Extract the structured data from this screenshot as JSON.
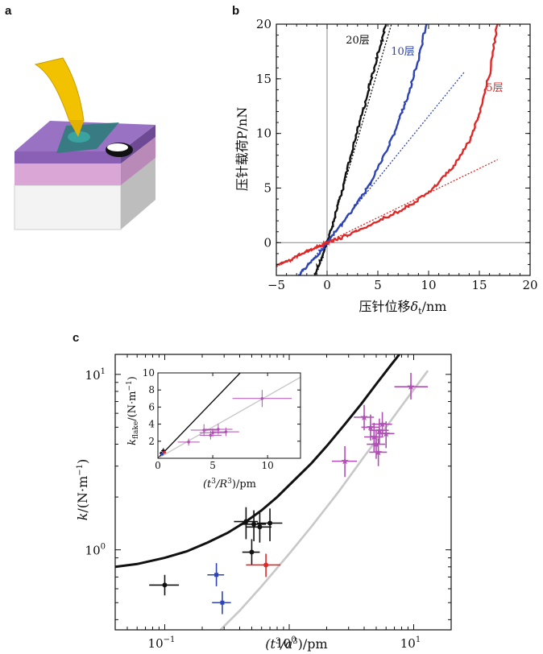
{
  "panels": {
    "a_label": "a",
    "b_label": "b",
    "c_label": "c"
  },
  "colors": {
    "gold": "#f2c200",
    "purple": "#8a60b5",
    "pink": "#d9a6d6",
    "teal": "#2e7c7c",
    "black_series": "#111111",
    "blue_series": "#2e44b5",
    "red_series": "#e02828",
    "magenta_points": "#b04fb4",
    "gray_line": "#c8c8c8"
  },
  "chart_data": [
    {
      "type": "line",
      "panel": "b",
      "ylabel": "压针载荷P/nN",
      "xlabel_main": "压针位移",
      "xlabel_symbol": "δ",
      "xlabel_subscript": "t",
      "xlabel_unit": "/nm",
      "xlim": [
        -5,
        20
      ],
      "ylim": [
        -3,
        20
      ],
      "xticks": [
        -5,
        0,
        5,
        10,
        15,
        20
      ],
      "yticks": [
        0,
        5,
        10,
        15,
        20
      ],
      "xtick_labels": [
        "−5",
        "0",
        "5",
        "10",
        "15",
        "20"
      ],
      "ytick_labels": [
        "0",
        "5",
        "10",
        "15",
        "20"
      ],
      "reference_lines": {
        "x": 0,
        "y": 0
      },
      "series": [
        {
          "name": "20层",
          "color": "#111111",
          "x": [
            -1.2,
            -0.6,
            0,
            0.8,
            1.6,
            2.5,
            3.4,
            4.2,
            5.0,
            5.8
          ],
          "y": [
            -3,
            -1.5,
            0,
            2.5,
            5.2,
            8.4,
            11.6,
            14.4,
            17.2,
            20
          ],
          "fit_x": [
            0,
            6.5
          ],
          "fit_y": [
            0,
            20.5
          ]
        },
        {
          "name": "10层",
          "color": "#2e44b5",
          "x": [
            -2.8,
            -1.4,
            0,
            1.5,
            3.0,
            4.5,
            6.0,
            7.0,
            8.0,
            9.0,
            9.8
          ],
          "y": [
            -3,
            -1.6,
            0,
            1.8,
            3.7,
            5.8,
            8.7,
            11.0,
            13.6,
            16.8,
            20
          ],
          "fit_x": [
            -2.8,
            13.5
          ],
          "fit_y": [
            -3.1,
            15.6
          ]
        },
        {
          "name": "5层",
          "color": "#e02828",
          "x": [
            -5,
            -3.5,
            -2,
            -0.8,
            0,
            1.5,
            3.5,
            6,
            8.5,
            10.5,
            12.5,
            14,
            15,
            16,
            16.8
          ],
          "y": [
            -2.1,
            -1.5,
            -0.8,
            -0.3,
            0,
            0.5,
            1.3,
            2.4,
            3.6,
            5.0,
            7.0,
            9.3,
            11.8,
            15.5,
            20
          ],
          "fit_x": [
            -5,
            16.8
          ],
          "fit_y": [
            -2.2,
            7.6
          ]
        }
      ]
    },
    {
      "type": "scatter",
      "panel": "c",
      "scale": "log-log",
      "ylabel_var": "k",
      "ylabel_unit": "/(N·m",
      "ylabel_exp": "−1",
      "ylabel_close": ")",
      "xlabel_var": "(t",
      "xlabel_exp1": "3",
      "xlabel_mid": "/a",
      "xlabel_exp2": "3",
      "xlabel_close": ")/pm",
      "xlim": [
        0.04,
        20
      ],
      "ylim": [
        0.35,
        13
      ],
      "xticks": [
        0.1,
        1,
        10
      ],
      "yticks": [
        1,
        10
      ],
      "xtick_labels": [
        {
          "base": "10",
          "exp": "−1"
        },
        {
          "base": "10",
          "exp": "0"
        },
        {
          "base": "10",
          "exp": "1"
        }
      ],
      "ytick_labels": [
        {
          "base": "10",
          "exp": "0"
        },
        {
          "base": "10",
          "exp": "1"
        }
      ],
      "curves": [
        {
          "color": "#111111",
          "x": [
            0.04,
            0.06,
            0.1,
            0.15,
            0.22,
            0.32,
            0.45,
            0.6,
            0.8,
            1.1,
            1.5,
            2.0,
            2.8,
            3.8,
            5.0,
            6.5,
            8.0
          ],
          "y": [
            0.8,
            0.83,
            0.9,
            0.98,
            1.1,
            1.25,
            1.45,
            1.68,
            2.0,
            2.5,
            3.1,
            3.9,
            5.2,
            6.8,
            8.8,
            11.2,
            13.5
          ]
        },
        {
          "color": "#c8c8c8",
          "x": [
            0.28,
            0.4,
            0.6,
            1.0,
            1.5,
            2.5,
            4.0,
            6.0,
            9.0,
            13.0
          ],
          "y": [
            0.35,
            0.45,
            0.62,
            0.95,
            1.35,
            2.15,
            3.4,
            5.0,
            7.4,
            10.5
          ]
        }
      ],
      "points": [
        {
          "group": "black",
          "color": "#111111",
          "x": 0.1,
          "y": 0.63,
          "xerr": [
            0.075,
            0.13
          ],
          "yerr": [
            0.55,
            0.72
          ]
        },
        {
          "group": "black",
          "color": "#111111",
          "x": 0.45,
          "y": 1.45,
          "xerr": [
            0.36,
            0.56
          ],
          "yerr": [
            1.15,
            1.75
          ]
        },
        {
          "group": "black",
          "color": "#111111",
          "x": 0.52,
          "y": 1.4,
          "xerr": [
            0.4,
            0.65
          ],
          "yerr": [
            1.12,
            1.68
          ]
        },
        {
          "group": "black",
          "color": "#111111",
          "x": 0.58,
          "y": 1.35,
          "xerr": [
            0.45,
            0.72
          ],
          "yerr": [
            1.1,
            1.62
          ]
        },
        {
          "group": "black",
          "color": "#111111",
          "x": 0.7,
          "y": 1.42,
          "xerr": [
            0.55,
            0.88
          ],
          "yerr": [
            1.12,
            1.72
          ]
        },
        {
          "group": "black",
          "color": "#111111",
          "x": 0.5,
          "y": 0.97,
          "xerr": [
            0.42,
            0.58
          ],
          "yerr": [
            0.82,
            1.15
          ]
        },
        {
          "group": "blue",
          "color": "#2e44b5",
          "x": 0.26,
          "y": 0.72,
          "xerr": [
            0.22,
            0.3
          ],
          "yerr": [
            0.62,
            0.84
          ]
        },
        {
          "group": "blue",
          "color": "#2e44b5",
          "x": 0.29,
          "y": 0.5,
          "xerr": [
            0.24,
            0.34
          ],
          "yerr": [
            0.43,
            0.58
          ]
        },
        {
          "group": "red",
          "color": "#e02828",
          "x": 0.65,
          "y": 0.82,
          "xerr": [
            0.45,
            0.85
          ],
          "yerr": [
            0.7,
            0.95
          ]
        },
        {
          "group": "magenta",
          "color": "#b04fb4",
          "x": 2.8,
          "y": 3.2,
          "xerr": [
            2.2,
            3.5
          ],
          "yerr": [
            2.6,
            3.9
          ]
        },
        {
          "group": "magenta",
          "color": "#b04fb4",
          "x": 4.0,
          "y": 5.7,
          "xerr": [
            3.3,
            4.8
          ],
          "yerr": [
            4.8,
            6.7
          ]
        },
        {
          "group": "magenta",
          "color": "#b04fb4",
          "x": 4.5,
          "y": 5.0,
          "xerr": [
            3.8,
            5.3
          ],
          "yerr": [
            4.2,
            5.9
          ]
        },
        {
          "group": "magenta",
          "color": "#b04fb4",
          "x": 4.8,
          "y": 4.4,
          "xerr": [
            4.0,
            5.7
          ],
          "yerr": [
            3.6,
            5.3
          ]
        },
        {
          "group": "magenta",
          "color": "#b04fb4",
          "x": 5.0,
          "y": 4.0,
          "xerr": [
            4.2,
            5.9
          ],
          "yerr": [
            3.3,
            4.8
          ]
        },
        {
          "group": "magenta",
          "color": "#b04fb4",
          "x": 5.3,
          "y": 4.8,
          "xerr": [
            4.4,
            6.3
          ],
          "yerr": [
            4.0,
            5.6
          ]
        },
        {
          "group": "magenta",
          "color": "#b04fb4",
          "x": 5.6,
          "y": 5.2,
          "xerr": [
            4.6,
            6.7
          ],
          "yerr": [
            4.4,
            6.1
          ]
        },
        {
          "group": "magenta",
          "color": "#b04fb4",
          "x": 5.2,
          "y": 3.6,
          "xerr": [
            4.4,
            6.1
          ],
          "yerr": [
            3.0,
            4.3
          ]
        },
        {
          "group": "magenta",
          "color": "#b04fb4",
          "x": 6.0,
          "y": 4.6,
          "xerr": [
            5.1,
            7.0
          ],
          "yerr": [
            3.8,
            5.4
          ]
        },
        {
          "group": "magenta",
          "color": "#b04fb4",
          "x": 9.5,
          "y": 8.5,
          "xerr": [
            7.0,
            13.0
          ],
          "yerr": [
            7.2,
            10.2
          ]
        }
      ]
    },
    {
      "type": "scatter",
      "panel": "c-inset",
      "ylabel_var": "k",
      "ylabel_sub": "flake",
      "ylabel_unit": "/(N·m",
      "ylabel_exp": "−1",
      "ylabel_close": ")",
      "xlabel_var": "(t",
      "xlabel_exp1": "3",
      "xlabel_mid": "/R",
      "xlabel_exp2": "3",
      "xlabel_close": ")/pm",
      "xlim": [
        0,
        13
      ],
      "ylim": [
        0,
        10
      ],
      "xticks": [
        0,
        5,
        10
      ],
      "yticks": [
        2,
        4,
        6,
        8,
        10
      ],
      "xtick_labels": [
        "0",
        "5",
        "10"
      ],
      "ytick_labels": [
        "2",
        "4",
        "6",
        "8",
        "10"
      ],
      "lines": [
        {
          "color": "#111111",
          "x": [
            0,
            7.5
          ],
          "y": [
            0,
            10
          ]
        },
        {
          "color": "#c8c8c8",
          "x": [
            0,
            13
          ],
          "y": [
            0,
            9.5
          ]
        }
      ],
      "points": [
        {
          "color": "#b04fb4",
          "x": 9.5,
          "y": 7.0,
          "xerr": [
            6.8,
            12.2
          ],
          "yerr": [
            6.0,
            8.0
          ]
        },
        {
          "color": "#b04fb4",
          "x": 4.2,
          "y": 3.3,
          "xerr": [
            3.0,
            5.4
          ],
          "yerr": [
            2.6,
            4.0
          ]
        },
        {
          "color": "#b04fb4",
          "x": 5.0,
          "y": 3.0,
          "xerr": [
            3.8,
            6.2
          ],
          "yerr": [
            2.5,
            3.5
          ]
        },
        {
          "color": "#b04fb4",
          "x": 5.5,
          "y": 3.4,
          "xerr": [
            4.2,
            6.8
          ],
          "yerr": [
            2.8,
            4.0
          ]
        },
        {
          "color": "#b04fb4",
          "x": 6.2,
          "y": 3.1,
          "xerr": [
            5.0,
            7.4
          ],
          "yerr": [
            2.6,
            3.6
          ]
        },
        {
          "color": "#b04fb4",
          "x": 4.8,
          "y": 2.7,
          "xerr": [
            3.8,
            5.8
          ],
          "yerr": [
            2.2,
            3.2
          ]
        },
        {
          "color": "#b04fb4",
          "x": 2.8,
          "y": 1.9,
          "xerr": [
            1.8,
            3.8
          ],
          "yerr": [
            1.5,
            2.3
          ]
        },
        {
          "color": "#111111",
          "x": 0.5,
          "y": 0.9,
          "xerr": [
            0.3,
            0.7
          ],
          "yerr": [
            0.6,
            1.2
          ]
        },
        {
          "color": "#111111",
          "x": 0.3,
          "y": 0.6,
          "xerr": [
            0.2,
            0.45
          ],
          "yerr": [
            0.4,
            0.8
          ]
        },
        {
          "color": "#2e44b5",
          "x": 0.4,
          "y": 0.5,
          "xerr": [
            0.3,
            0.5
          ],
          "yerr": [
            0.35,
            0.65
          ]
        },
        {
          "color": "#e02828",
          "x": 0.6,
          "y": 0.7,
          "xerr": [
            0.45,
            0.75
          ],
          "yerr": [
            0.55,
            0.85
          ]
        }
      ]
    }
  ]
}
